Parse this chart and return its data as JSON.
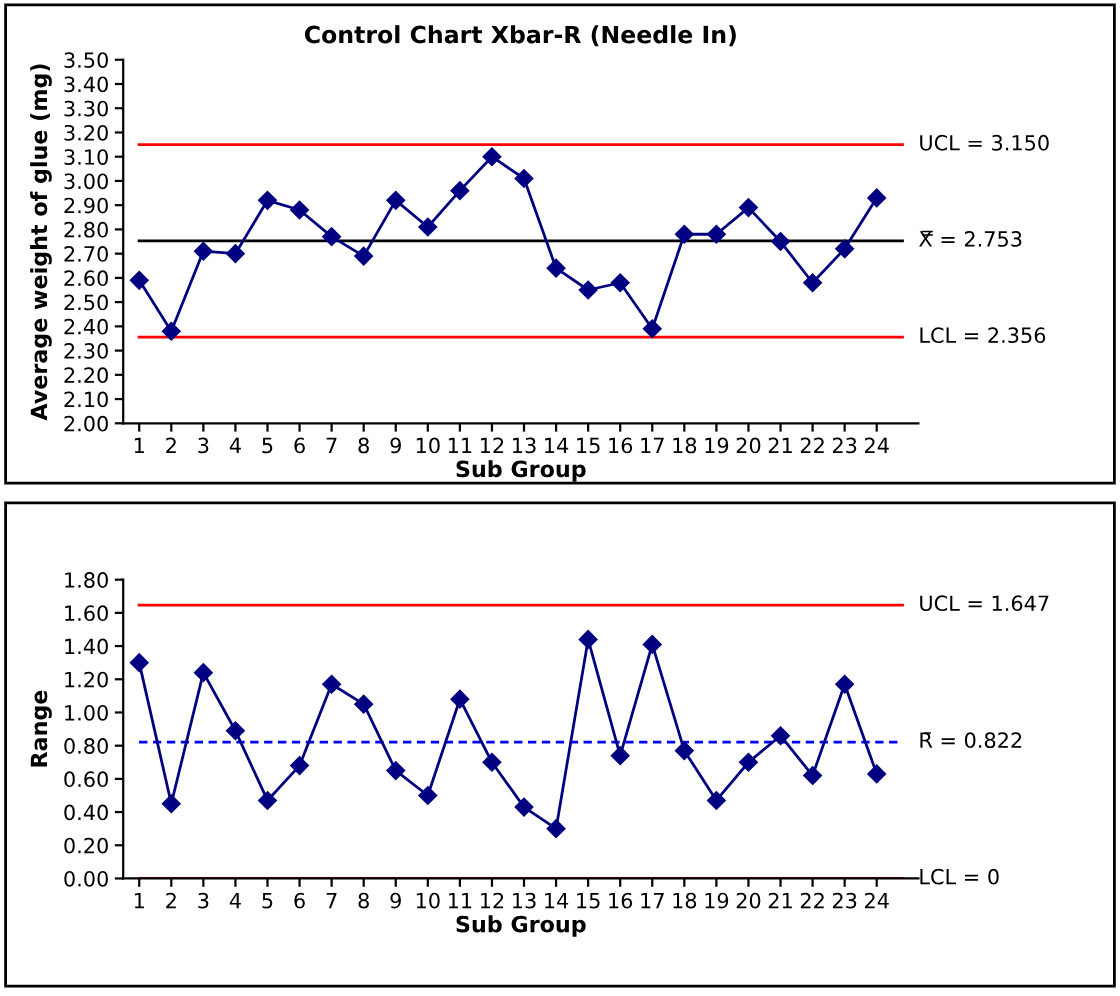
{
  "chart_data": [
    {
      "type": "line",
      "title": "Control Chart Xbar-R (Needle In)",
      "xlabel": "Sub Group",
      "ylabel": "Average weight of glue (mg)",
      "categories": [
        "1",
        "2",
        "3",
        "4",
        "5",
        "6",
        "7",
        "8",
        "9",
        "10",
        "11",
        "12",
        "13",
        "14",
        "15",
        "16",
        "17",
        "18",
        "19",
        "20",
        "21",
        "22",
        "23",
        "24"
      ],
      "series": [
        {
          "color": "#000080",
          "values": [
            2.59,
            2.38,
            2.71,
            2.7,
            2.92,
            2.88,
            2.77,
            2.69,
            2.92,
            2.81,
            2.96,
            3.1,
            3.01,
            2.64,
            2.55,
            2.58,
            2.39,
            2.78,
            2.78,
            2.89,
            2.75,
            2.58,
            2.72,
            2.93
          ]
        }
      ],
      "marker": "diamond",
      "ylim": [
        2.0,
        3.5
      ],
      "yticks": [
        {
          "value": 2.0,
          "label": "2.00"
        },
        {
          "value": 2.1,
          "label": "2.10"
        },
        {
          "value": 2.2,
          "label": "2.20"
        },
        {
          "value": 2.3,
          "label": "2.30"
        },
        {
          "value": 2.4,
          "label": "2.40"
        },
        {
          "value": 2.5,
          "label": "2.50"
        },
        {
          "value": 2.6,
          "label": "2.60"
        },
        {
          "value": 2.7,
          "label": "2.70"
        },
        {
          "value": 2.8,
          "label": "2.80"
        },
        {
          "value": 2.9,
          "label": "2.90"
        },
        {
          "value": 3.0,
          "label": "3.00"
        },
        {
          "value": 3.1,
          "label": "3.10"
        },
        {
          "value": 3.2,
          "label": "3.20"
        },
        {
          "value": 3.3,
          "label": "3.30"
        },
        {
          "value": 3.4,
          "label": "3.40"
        },
        {
          "value": 3.5,
          "label": "3.50"
        }
      ],
      "ref_lines": [
        {
          "axis": "y",
          "value": 3.15,
          "label": "UCL = 3.150",
          "color": "#ff0000",
          "line_style": "solid"
        },
        {
          "axis": "y",
          "value": 2.753,
          "label": "X̿ = 2.753",
          "color": "#000000",
          "line_style": "solid"
        },
        {
          "axis": "y",
          "value": 2.356,
          "label": "LCL = 2.356",
          "color": "#ff0000",
          "line_style": "solid"
        }
      ]
    },
    {
      "type": "line",
      "xlabel": "Sub Group",
      "ylabel": "Range",
      "categories": [
        "1",
        "2",
        "3",
        "4",
        "5",
        "6",
        "7",
        "8",
        "9",
        "10",
        "11",
        "12",
        "13",
        "14",
        "15",
        "16",
        "17",
        "18",
        "19",
        "20",
        "21",
        "22",
        "23",
        "24"
      ],
      "series": [
        {
          "color": "#000080",
          "values": [
            1.3,
            0.45,
            1.24,
            0.89,
            0.47,
            0.68,
            1.17,
            1.05,
            0.65,
            0.5,
            1.08,
            0.7,
            0.43,
            0.3,
            1.44,
            0.74,
            1.41,
            0.77,
            0.47,
            0.7,
            0.86,
            0.62,
            1.17,
            0.63
          ]
        }
      ],
      "marker": "diamond",
      "ylim": [
        0.0,
        1.8
      ],
      "yticks": [
        {
          "value": 0.0,
          "label": "0.00"
        },
        {
          "value": 0.2,
          "label": "0.20"
        },
        {
          "value": 0.4,
          "label": "0.40"
        },
        {
          "value": 0.6,
          "label": "0.60"
        },
        {
          "value": 0.8,
          "label": "0.80"
        },
        {
          "value": 1.0,
          "label": "1.00"
        },
        {
          "value": 1.2,
          "label": "1.20"
        },
        {
          "value": 1.4,
          "label": "1.40"
        },
        {
          "value": 1.6,
          "label": "1.60"
        },
        {
          "value": 1.8,
          "label": "1.80"
        }
      ],
      "ref_lines": [
        {
          "axis": "y",
          "value": 1.647,
          "label": "UCL = 1.647",
          "color": "#ff0000",
          "line_style": "solid"
        },
        {
          "axis": "y",
          "value": 0.822,
          "label": "R̄ = 0.822",
          "color": "#0000ff",
          "line_style": "dashed"
        },
        {
          "axis": "y",
          "value": 0,
          "label": "LCL = 0",
          "color": "#ff0000",
          "line_style": "solid"
        }
      ]
    }
  ]
}
